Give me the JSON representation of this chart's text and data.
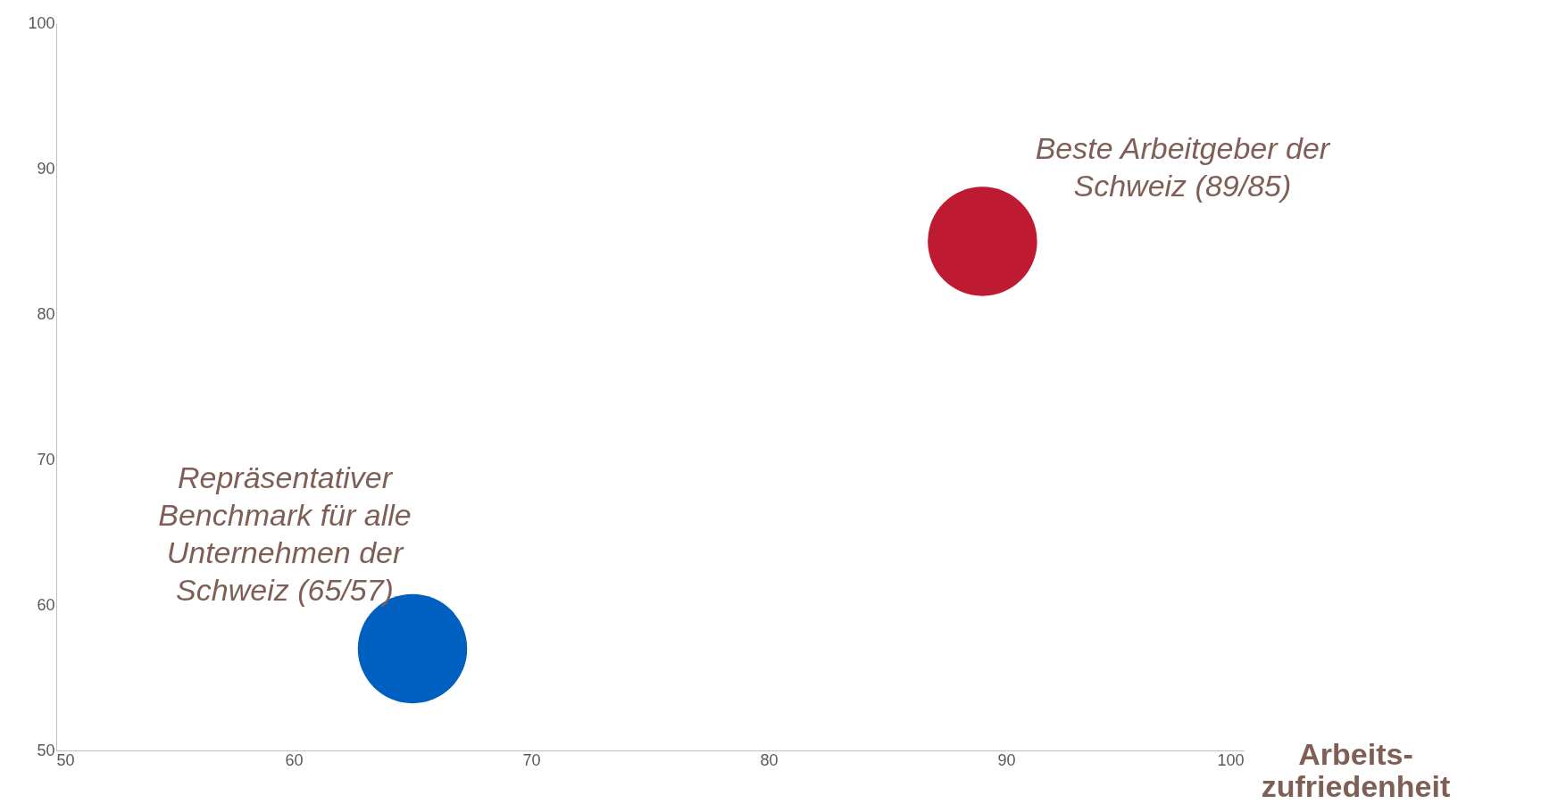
{
  "chart_data": {
    "type": "scatter",
    "xlabel": "Arbeits-\nzufriedenheit",
    "x": [
      65,
      89
    ],
    "values": [
      57,
      85
    ],
    "colors": [
      "#0060bf",
      "#be1a32"
    ],
    "xlim": [
      50,
      100
    ],
    "xticks": [
      50,
      60,
      70,
      80,
      90,
      100
    ],
    "ylim": [
      50,
      100
    ],
    "yticks": [
      50,
      60,
      70,
      80,
      90,
      100
    ],
    "grid": false,
    "annotations": [
      {
        "text": "Repräsentativer\nBenchmark für alle\nUnternehmen der\nSchweiz (65/57)",
        "x": 65,
        "y": 57
      },
      {
        "text": "Beste Arbeitgeber der\nSchweiz (89/85)",
        "x": 89,
        "y": 85
      }
    ]
  }
}
